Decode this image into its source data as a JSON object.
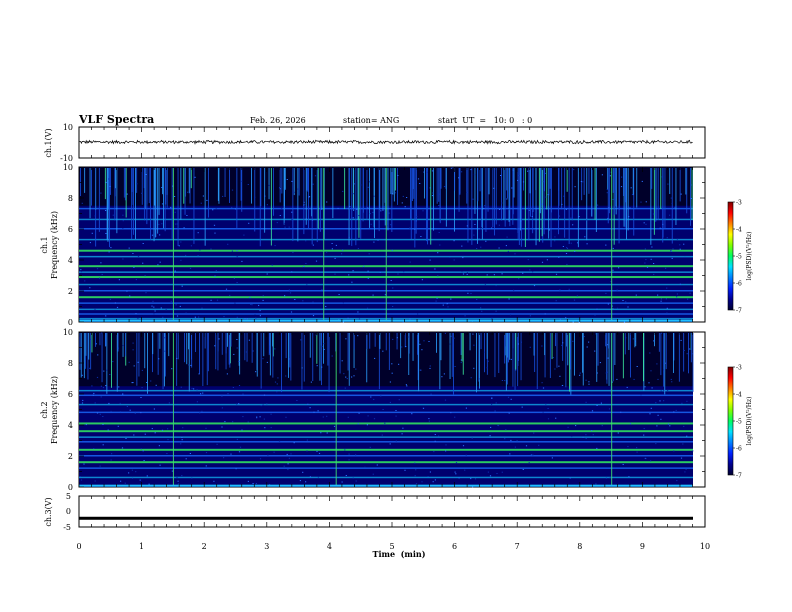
{
  "header": {
    "title": "VLF Spectra",
    "date": "Feb. 26, 2026",
    "station": "station= ANG",
    "start": "start  UT  =   10: 0   : 0"
  },
  "chart_data": [
    {
      "type": "line",
      "name": "ch1-waveform",
      "ylabel": "ch.1(V)",
      "ylim": [
        -10,
        10
      ],
      "yticks": [
        "10",
        "-10"
      ],
      "xlim": [
        0,
        9.8
      ],
      "mean": 0.3,
      "amplitude": 1.2
    },
    {
      "type": "heatmap",
      "name": "ch1-spectrogram",
      "ylabel": "ch.1\nFrequency  (kHz)",
      "ylabel_top": "ch.1",
      "ylabel_bottom": "Frequency  (kHz)",
      "ylim": [
        0,
        10
      ],
      "yticks": [
        "0",
        "2",
        "4",
        "6",
        "8",
        "10"
      ],
      "xlim": [
        0,
        9.8
      ],
      "bands_khz": [
        0.2,
        0.5,
        0.8,
        1.2,
        1.6,
        2.0,
        2.4,
        2.9,
        3.2,
        3.6,
        4.2,
        4.6,
        5.3,
        6.0,
        6.6,
        7.3
      ],
      "bright_bands_khz": [
        1.6,
        2.9,
        3.6,
        4.6
      ],
      "vertical_lines_min": [
        1.5,
        3.9,
        4.9,
        8.5
      ],
      "colorbar": {
        "label": "log(PSD)(V²/Hz)",
        "range": [
          -7,
          -3
        ],
        "ticks": [
          "-3",
          "-4",
          "-5",
          "-6",
          "-7"
        ]
      }
    },
    {
      "type": "heatmap",
      "name": "ch2-spectrogram",
      "ylabel_top": "ch.2",
      "ylabel_bottom": "Frequency  (kHz)",
      "ylim": [
        0,
        10
      ],
      "yticks": [
        "0",
        "2",
        "4",
        "6",
        "8",
        "10"
      ],
      "xlim": [
        0,
        9.8
      ],
      "bands_khz": [
        0.6,
        1.2,
        1.6,
        2.0,
        2.4,
        2.9,
        3.2,
        3.6,
        4.1,
        4.8,
        5.3,
        5.9,
        6.2
      ],
      "bright_bands_khz": [
        1.6,
        2.4,
        3.6,
        4.1
      ],
      "vertical_lines_min": [
        1.5,
        4.1,
        8.5
      ],
      "colorbar": {
        "label": "log(PSD)(V²/Hz)",
        "range": [
          -7,
          -3
        ],
        "ticks": [
          "-3",
          "-4",
          "-5",
          "-6",
          "-7"
        ]
      }
    },
    {
      "type": "line",
      "name": "ch3-waveform",
      "ylabel": "ch.3(V)",
      "ylim": [
        -5,
        5
      ],
      "yticks": [
        "5",
        "0",
        "-5"
      ],
      "xlim": [
        0,
        9.8
      ],
      "mean": -2.0,
      "amplitude": 0.3
    }
  ],
  "xaxis": {
    "label": "Time  (min)",
    "range": [
      0,
      10
    ],
    "ticks": [
      "0",
      "1",
      "2",
      "3",
      "4",
      "5",
      "6",
      "7",
      "8",
      "9",
      "10"
    ]
  }
}
